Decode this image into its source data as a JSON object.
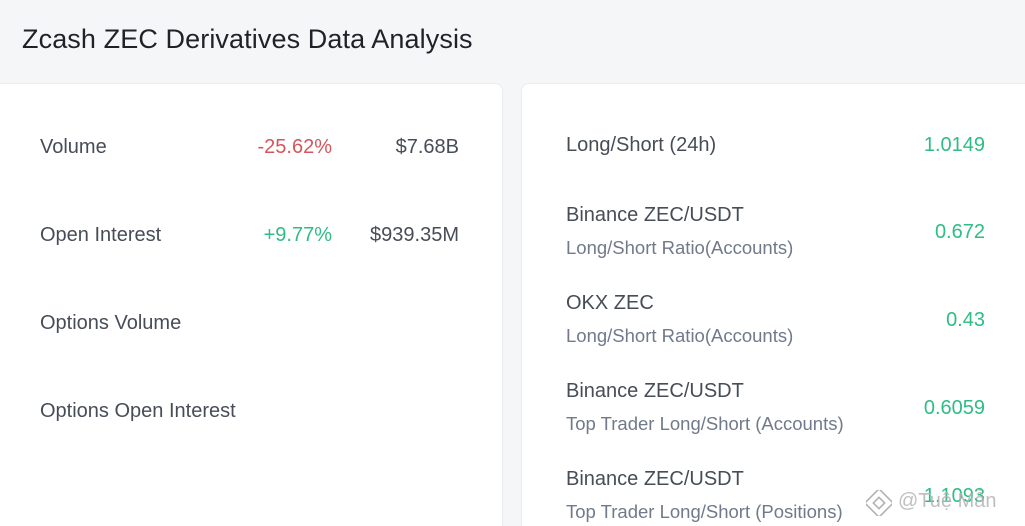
{
  "page": {
    "title": "Zcash ZEC Derivatives Data Analysis"
  },
  "left_panel": {
    "rows": [
      {
        "label": "Volume",
        "change": "-25.62%",
        "value": "$7.68B",
        "trend": "negative"
      },
      {
        "label": "Open Interest",
        "change": "+9.77%",
        "value": "$939.35M",
        "trend": "positive"
      },
      {
        "label": "Options Volume",
        "change": "",
        "value": ""
      },
      {
        "label": "Options Open Interest",
        "change": "",
        "value": ""
      }
    ]
  },
  "right_panel": {
    "rows": [
      {
        "title": "Long/Short (24h)",
        "subtitle": "",
        "value": "1.0149"
      },
      {
        "title": "Binance ZEC/USDT",
        "subtitle": "Long/Short Ratio(Accounts)",
        "value": "0.672"
      },
      {
        "title": "OKX ZEC",
        "subtitle": "Long/Short Ratio(Accounts)",
        "value": "0.43"
      },
      {
        "title": "Binance ZEC/USDT",
        "subtitle": "Top Trader Long/Short (Accounts)",
        "value": "0.6059"
      },
      {
        "title": "Binance ZEC/USDT",
        "subtitle": "Top Trader Long/Short (Positions)",
        "value": "1.1093"
      }
    ]
  },
  "watermark": {
    "text": "@Tuệ Mẫn",
    "icon": "binance-square-logo-icon"
  },
  "colors": {
    "negative": "#d4565c",
    "positive": "#2ebd85",
    "background": "#f5f6f7",
    "card": "#ffffff"
  }
}
